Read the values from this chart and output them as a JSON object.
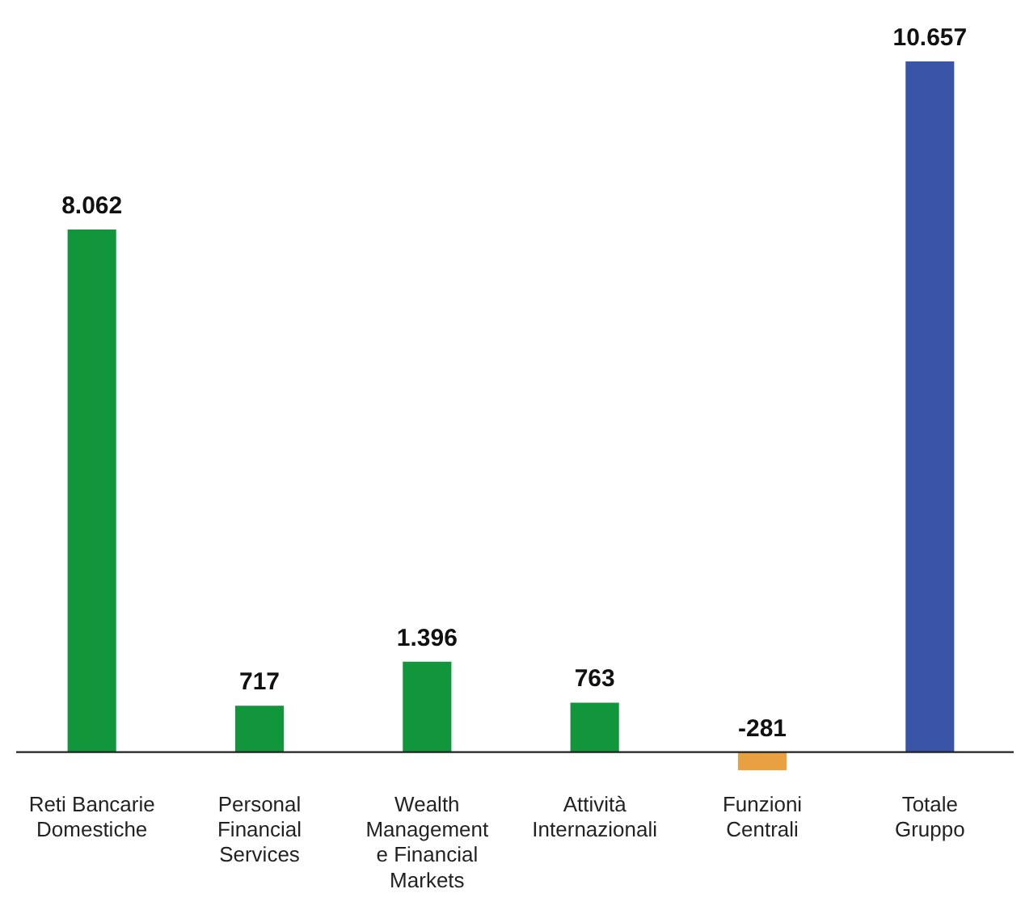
{
  "chart_data": {
    "type": "bar",
    "categories": [
      "Reti Bancarie Domestiche",
      "Personal Financial Services",
      "Wealth Management e Financial Markets",
      "Attività Internazionali",
      "Funzioni Centrali",
      "Totale Gruppo"
    ],
    "values": [
      8062,
      717,
      1396,
      763,
      -281,
      10657
    ],
    "colors": [
      "#12963c",
      "#12963c",
      "#12963c",
      "#12963c",
      "#e8a040",
      "#3a55a8"
    ],
    "value_labels": [
      "8.062",
      "717",
      "1.396",
      "763",
      "-281",
      "10.657"
    ]
  }
}
